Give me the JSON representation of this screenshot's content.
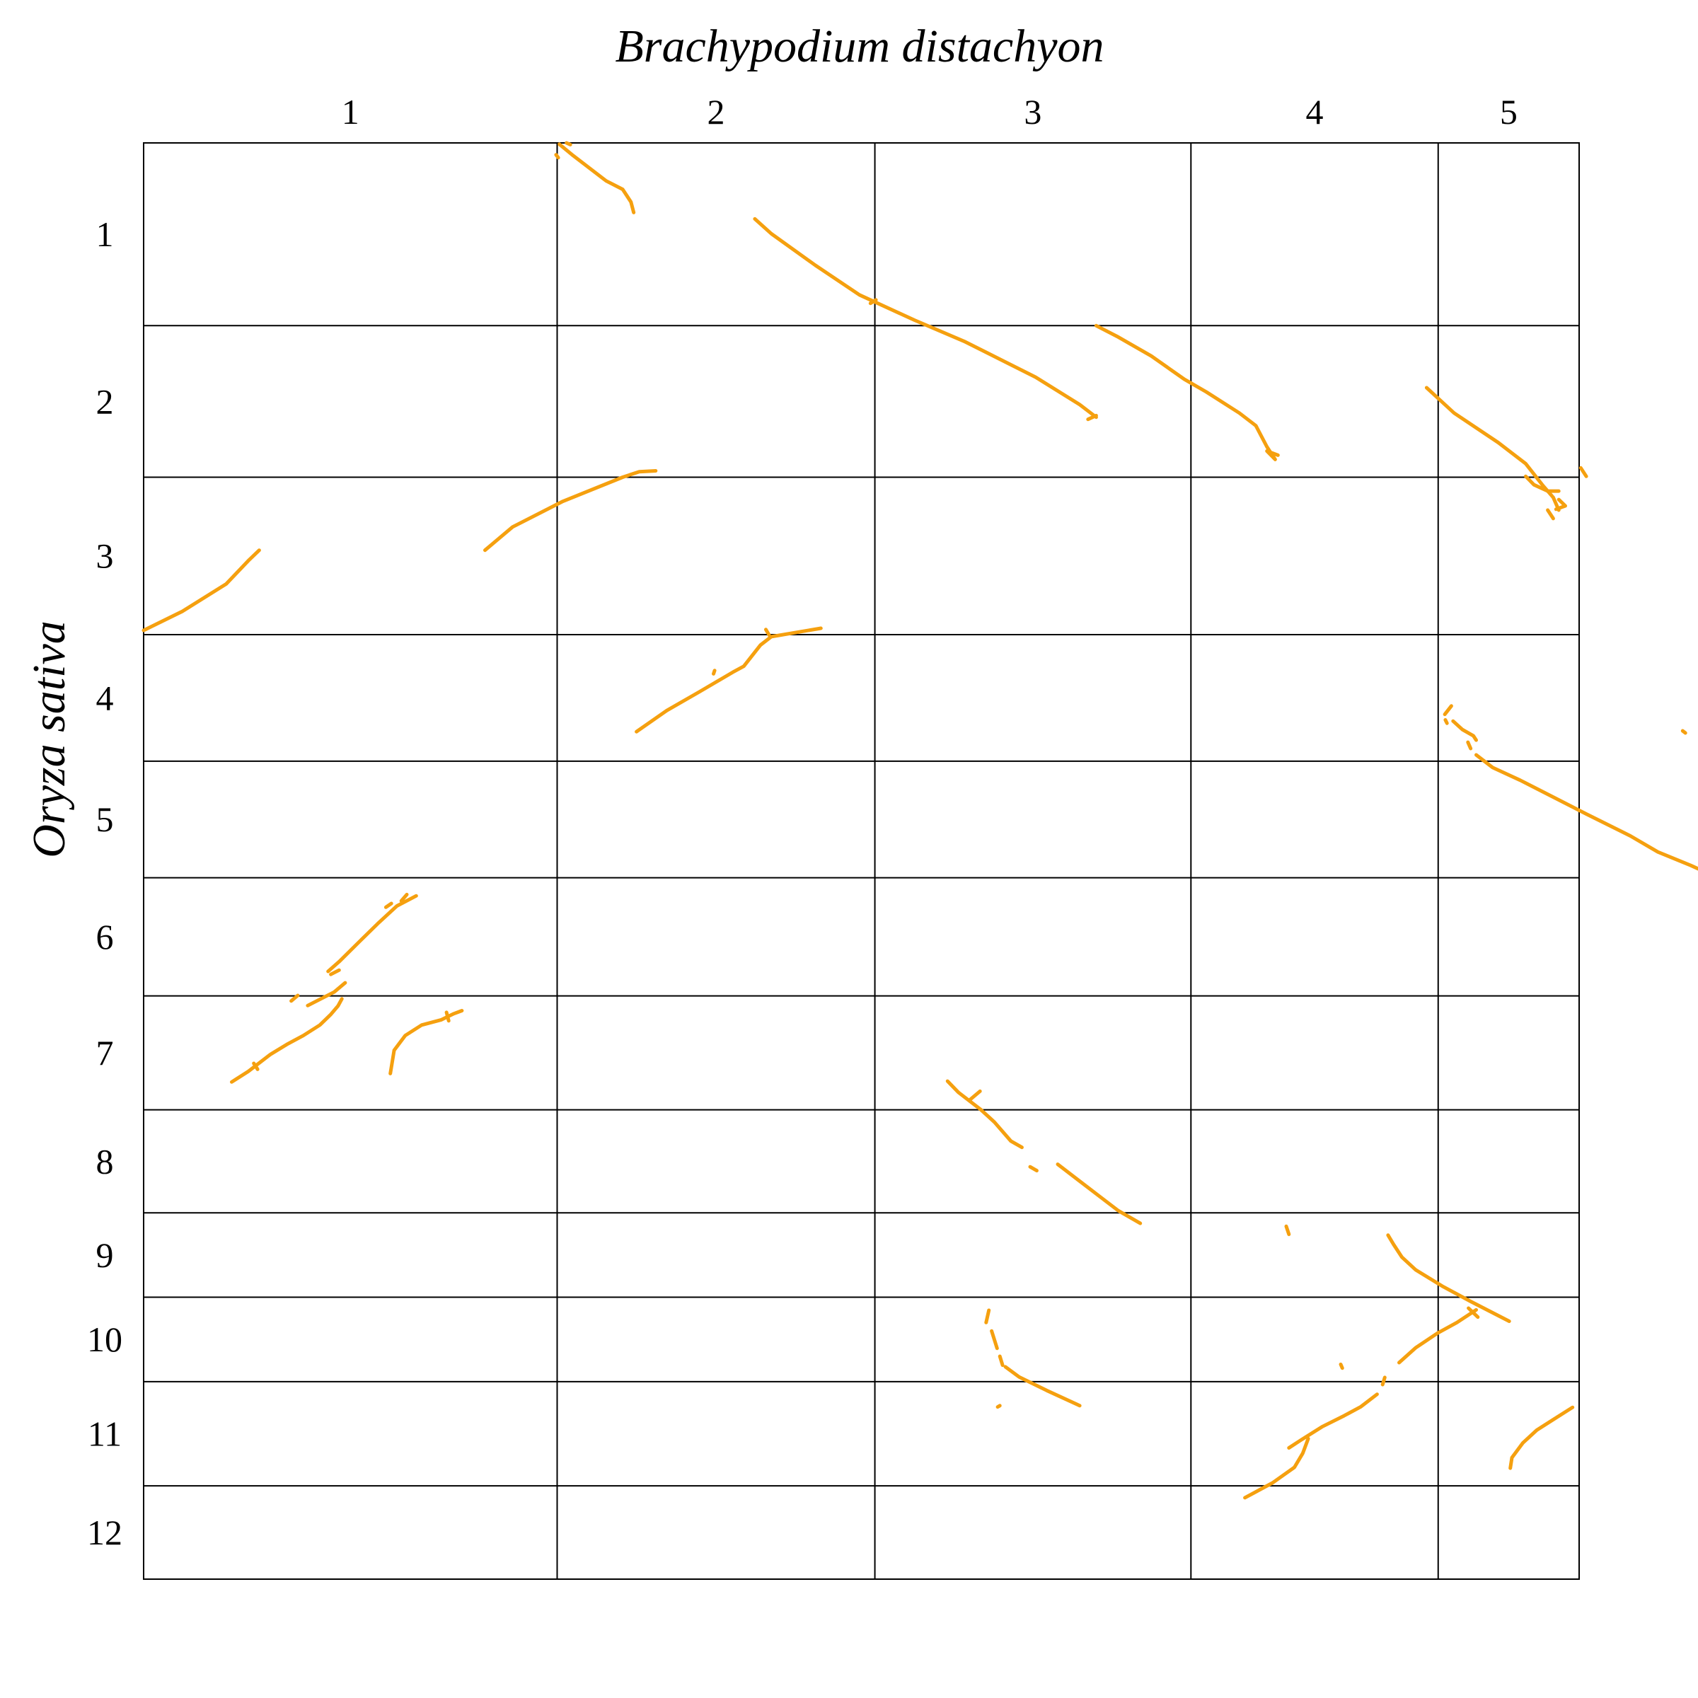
{
  "chart_data": {
    "type": "dotplot",
    "title": "",
    "xlabel": "Brachypodium distachyon",
    "ylabel": "Oryza sativa",
    "x_chromosomes": [
      {
        "label": "1",
        "length": 75.1
      },
      {
        "label": "2",
        "length": 57.7
      },
      {
        "label": "3",
        "length": 57.4
      },
      {
        "label": "4",
        "length": 44.9
      },
      {
        "label": "5",
        "length": 25.6
      }
    ],
    "y_chromosomes": [
      {
        "label": "1",
        "length": 43.3
      },
      {
        "label": "2",
        "length": 35.9
      },
      {
        "label": "3",
        "length": 37.3
      },
      {
        "label": "4",
        "length": 30.0
      },
      {
        "label": "5",
        "length": 27.6
      },
      {
        "label": "6",
        "length": 28.0
      },
      {
        "label": "7",
        "length": 27.0
      },
      {
        "label": "8",
        "length": 24.4
      },
      {
        "label": "9",
        "length": 20.0
      },
      {
        "label": "10",
        "length": 20.0
      },
      {
        "label": "11",
        "length": 24.7
      },
      {
        "label": "12",
        "length": 22.1
      }
    ],
    "units": "Mb",
    "grid": true,
    "color": "#F5A00F",
    "segments": [
      [
        [
          75.5,
          0.3
        ],
        [
          78,
          3
        ],
        [
          84,
          9
        ],
        [
          87,
          11
        ],
        [
          88.5,
          14
        ],
        [
          89,
          16.5
        ]
      ],
      [
        [
          74.9,
          2.8
        ],
        [
          75.3,
          3.5
        ]
      ],
      [
        [
          76.8,
          0
        ],
        [
          77.5,
          0.4
        ]
      ],
      [
        [
          111,
          18
        ],
        [
          114,
          21.5
        ],
        [
          122,
          29
        ],
        [
          130,
          36
        ],
        [
          140,
          42
        ],
        [
          149,
          47
        ],
        [
          162,
          55.5
        ],
        [
          170,
          62
        ],
        [
          173,
          65
        ]
      ],
      [
        [
          173,
          64.6
        ],
        [
          171.5,
          65.5
        ]
      ],
      [
        [
          133,
          37.2
        ],
        [
          132,
          38
        ]
      ],
      [
        [
          173,
          43.3
        ],
        [
          177,
          46
        ],
        [
          183,
          50.5
        ],
        [
          189,
          56
        ],
        [
          193,
          59
        ],
        [
          199,
          64
        ],
        [
          202,
          67
        ],
        [
          204,
          72
        ],
        [
          205.5,
          75
        ],
        [
          204,
          73
        ],
        [
          206,
          74
        ]
      ],
      [
        [
          233,
          58
        ],
        [
          238,
          64
        ],
        [
          246,
          71
        ],
        [
          251,
          76
        ],
        [
          254,
          81
        ],
        [
          256,
          84
        ],
        [
          257,
          87
        ]
      ],
      [
        [
          255,
          87
        ],
        [
          256,
          89
        ]
      ],
      [
        [
          257,
          84.5
        ],
        [
          258.2,
          86
        ],
        [
          256.5,
          86.8
        ]
      ],
      [
        [
          261,
          77
        ],
        [
          262,
          79
        ]
      ],
      [
        [
          251,
          79
        ],
        [
          252.5,
          81
        ],
        [
          255,
          82.5
        ],
        [
          257,
          82.5
        ]
      ],
      [
        [
          0,
          115.5
        ],
        [
          7,
          111
        ],
        [
          15,
          104.5
        ],
        [
          19,
          99
        ],
        [
          21,
          96.5
        ]
      ],
      [
        [
          62,
          96.5
        ],
        [
          67,
          91
        ],
        [
          76,
          85
        ],
        [
          87,
          79.2
        ],
        [
          90,
          77.9
        ],
        [
          93,
          77.7
        ]
      ],
      [
        [
          89.5,
          139.5
        ],
        [
          95,
          134.5
        ],
        [
          101,
          130
        ],
        [
          107,
          125.4
        ],
        [
          109,
          124
        ],
        [
          112,
          119
        ],
        [
          114,
          117
        ],
        [
          123,
          115
        ]
      ],
      [
        [
          103.7,
          125
        ],
        [
          103.5,
          125.8
        ]
      ],
      [
        [
          113,
          115.3
        ],
        [
          113.6,
          116.6
        ]
      ],
      [
        [
          49.5,
          178.4
        ],
        [
          46,
          180.8
        ],
        [
          42.5,
          185
        ],
        [
          39,
          189.5
        ],
        [
          35.5,
          194
        ],
        [
          33.5,
          196.3
        ]
      ],
      [
        [
          28,
          202
        ],
        [
          26.8,
          203.3
        ]
      ],
      [
        [
          36.6,
          199
        ],
        [
          34.6,
          201.2
        ],
        [
          29.8,
          204.4
        ]
      ],
      [
        [
          47.8,
          178.1
        ],
        [
          46.8,
          179.6
        ]
      ],
      [
        [
          45,
          180.2
        ],
        [
          44,
          181.1
        ]
      ],
      [
        [
          35.5,
          196
        ],
        [
          34,
          197
        ]
      ],
      [
        [
          16,
          222.5
        ],
        [
          19,
          220
        ],
        [
          23,
          216
        ],
        [
          26,
          213.6
        ],
        [
          29,
          211.5
        ],
        [
          32,
          209
        ],
        [
          34,
          206.5
        ],
        [
          35.3,
          204.5
        ],
        [
          36,
          202.8
        ]
      ],
      [
        [
          20,
          218.1
        ],
        [
          20.7,
          219.5
        ]
      ],
      [
        [
          44.8,
          220.5
        ],
        [
          45.5,
          215
        ],
        [
          47.5,
          211.5
        ],
        [
          50.5,
          209
        ],
        [
          54,
          207.8
        ],
        [
          56.2,
          206.4
        ],
        [
          57.8,
          205.6
        ]
      ],
      [
        [
          55,
          206
        ],
        [
          55.4,
          208
        ]
      ],
      [
        [
          146,
          222.3
        ],
        [
          148,
          225
        ],
        [
          152,
          229
        ],
        [
          154.5,
          232
        ],
        [
          157.5,
          236.5
        ],
        [
          159.5,
          238
        ]
      ],
      [
        [
          150,
          226.8
        ],
        [
          151.9,
          224.7
        ]
      ],
      [
        [
          161,
          242.6
        ],
        [
          162.2,
          243.5
        ]
      ],
      [
        [
          166,
          242
        ],
        [
          170,
          246
        ],
        [
          174,
          250
        ],
        [
          177,
          253
        ],
        [
          181,
          256
        ]
      ],
      [
        [
          207.5,
          256.7
        ],
        [
          208,
          258.6
        ]
      ],
      [
        [
          226,
          258.8
        ],
        [
          227,
          261
        ],
        [
          228.5,
          264
        ],
        [
          231,
          267
        ],
        [
          236,
          271
        ],
        [
          241,
          274.5
        ],
        [
          248,
          279.2
        ]
      ],
      [
        [
          153.5,
          276.6
        ],
        [
          153,
          279.5
        ]
      ],
      [
        [
          154,
          281.5
        ],
        [
          155,
          285.6
        ]
      ],
      [
        [
          155.5,
          287.5
        ],
        [
          156,
          289.6
        ]
      ],
      [
        [
          156.5,
          290
        ],
        [
          159,
          292.4
        ],
        [
          164,
          295.6
        ],
        [
          170,
          299.2
        ]
      ],
      [
        [
          155.5,
          299.2
        ],
        [
          155.1,
          299.5
        ]
      ],
      [
        [
          208,
          309.2
        ],
        [
          210,
          307.5
        ],
        [
          214,
          304.2
        ],
        [
          218,
          301.6
        ],
        [
          221,
          299.5
        ],
        [
          224,
          296.5
        ]
      ],
      [
        [
          217.4,
          289.4
        ],
        [
          217.7,
          290.3
        ]
      ],
      [
        [
          225,
          294.2
        ],
        [
          225.4,
          292.5
        ]
      ],
      [
        [
          228,
          289
        ],
        [
          231,
          285.5
        ],
        [
          235,
          282
        ],
        [
          238.5,
          279.5
        ],
        [
          242,
          276.5
        ]
      ],
      [
        [
          240.6,
          276.1
        ],
        [
          242.3,
          278.2
        ]
      ],
      [
        [
          200,
          321
        ],
        [
          205,
          317.5
        ],
        [
          209,
          313.8
        ],
        [
          210.5,
          310.5
        ],
        [
          211.5,
          307
        ]
      ],
      [
        [
          248.2,
          314
        ],
        [
          248.5,
          311.5
        ],
        [
          250.5,
          308
        ],
        [
          253,
          305
        ],
        [
          256,
          302.5
        ],
        [
          259.5,
          299.6
        ]
      ],
      [
        [
          236.3,
          135.4
        ],
        [
          237.5,
          133.4
        ]
      ],
      [
        [
          236.4,
          136.7
        ],
        [
          236.7,
          137.5
        ]
      ],
      [
        [
          237.8,
          137
        ],
        [
          239.5,
          139
        ],
        [
          241.5,
          140.5
        ],
        [
          242,
          141.5
        ]
      ],
      [
        [
          240.5,
          142
        ],
        [
          241,
          143.5
        ]
      ],
      [
        [
          242,
          145
        ],
        [
          245,
          148
        ],
        [
          250,
          151
        ],
        [
          256,
          155
        ],
        [
          262,
          159
        ],
        [
          270,
          164.2
        ],
        [
          275,
          168
        ],
        [
          281,
          171.2
        ],
        [
          285,
          173.6
        ]
      ],
      [
        [
          279.5,
          139.3
        ],
        [
          280,
          139.8
        ]
      ],
      [
        [
          283,
          141.7
        ],
        [
          283.4,
          142.7
        ]
      ]
    ]
  }
}
